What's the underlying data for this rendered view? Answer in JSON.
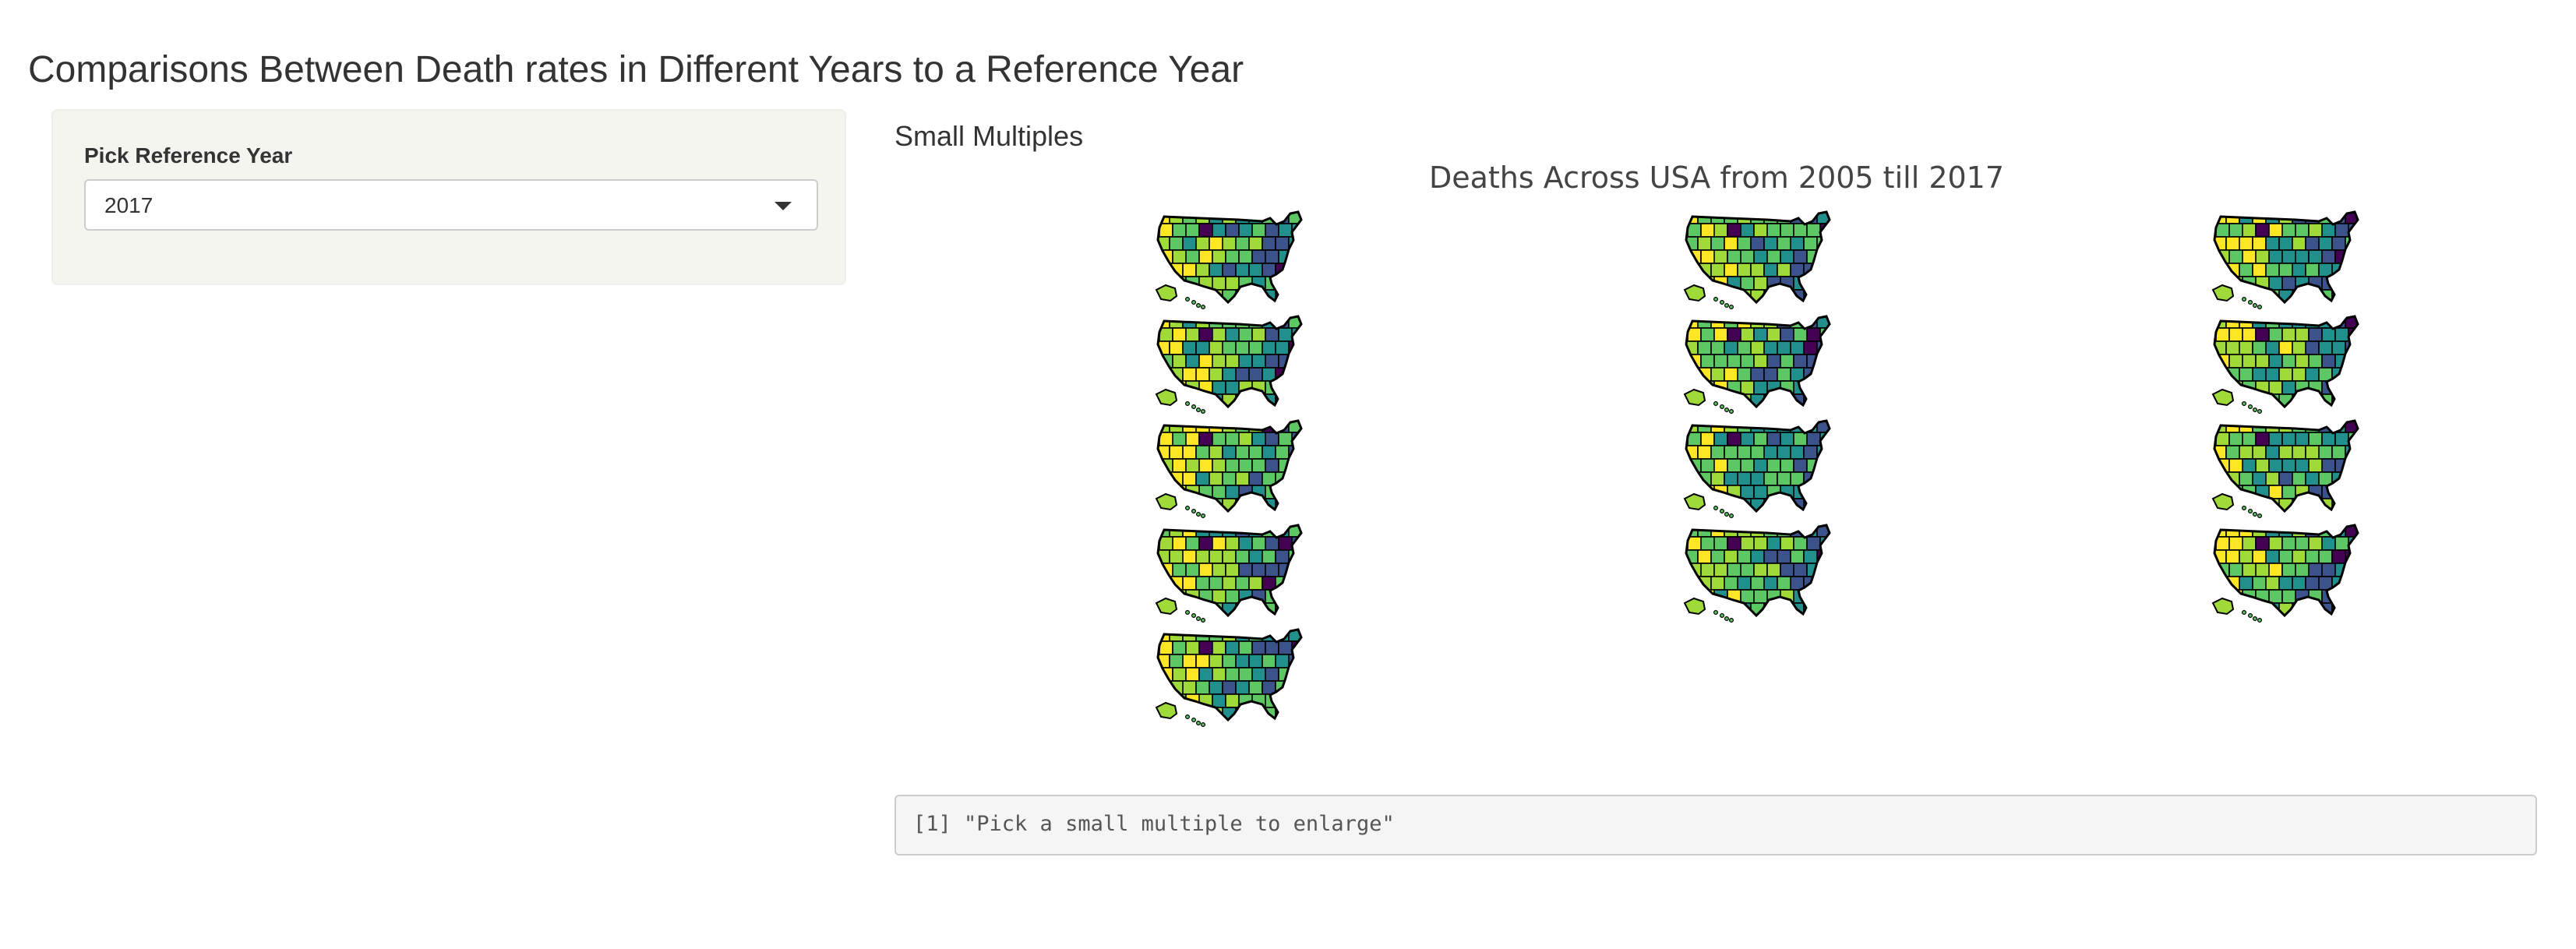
{
  "page": {
    "title": "Comparisons Between Death rates in Different Years to a Reference Year"
  },
  "sidebar": {
    "label": "Pick Reference Year",
    "select": {
      "value": "2017",
      "caret_icon": "caret-down-icon"
    }
  },
  "main": {
    "heading": "Small Multiples",
    "plot_title": "Deaths Across USA from 2005 till 2017",
    "output_text": "[1] \"Pick a small multiple to enlarge\""
  },
  "small_multiples": {
    "count": 13,
    "columns": 3,
    "palette": [
      "#440154",
      "#3b528b",
      "#21908c",
      "#5dc863",
      "#a0da39",
      "#fde725"
    ],
    "outline_color": "#000000"
  }
}
